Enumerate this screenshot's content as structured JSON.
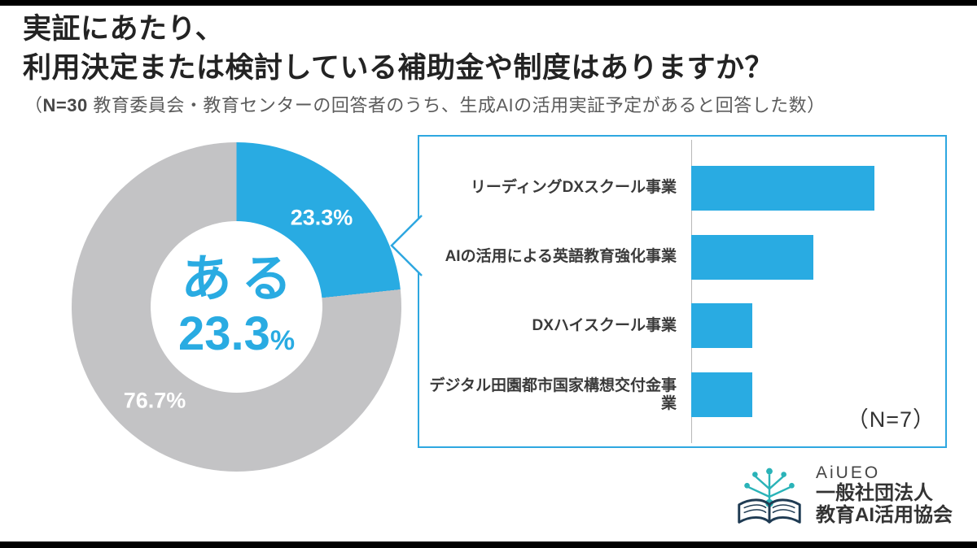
{
  "page": {
    "title_line1": "実証にあたり、",
    "title_line2": "利用決定または検討している補助金や制度はありますか？",
    "subtitle_prefix": "（",
    "subtitle_n": "N=30",
    "subtitle_rest": " 教育委員会・教育センターの回答者のうち、生成AIの活用実証予定があると回答した数）"
  },
  "colors": {
    "blue": "#29ABE2",
    "gray": "#C3C3C5",
    "panel_border": "#2EA7E0"
  },
  "donut": {
    "blue_pct": 23.3,
    "gray_pct": 76.7,
    "center_word": "ある",
    "center_value": "23.3",
    "center_percent_sign": "%",
    "blue_slice_label": "23.3%",
    "gray_slice_label": "76.7%"
  },
  "bar_panel": {
    "n_label": "（N=7）",
    "items": [
      {
        "label": "リーディングDXスクール事業",
        "value": 3
      },
      {
        "label": "AIの活用による英語教育強化事業",
        "value": 2
      },
      {
        "label": "DXハイスクール事業",
        "value": 1
      },
      {
        "label": "デジタル田園都市国家構想交付金事業",
        "value": 1
      }
    ]
  },
  "logo": {
    "line1": "AiUEO",
    "line2": "一般社団法人",
    "line3": "教育AI活用協会"
  },
  "chart_data": [
    {
      "type": "pie",
      "donut": true,
      "title": "実証にあたり、利用決定または検討している補助金や制度はありますか？",
      "subtitle": "（N=30 教育委員会・教育センターの回答者のうち、生成AIの活用実証予定があると回答した数）",
      "labels": [
        "ある",
        ""
      ],
      "values": [
        23.3,
        76.7
      ],
      "colors": [
        "#29ABE2",
        "#C3C3C5"
      ],
      "center_text": "ある 23.3%",
      "start_angle": "top",
      "direction": "clockwise"
    },
    {
      "type": "bar",
      "orientation": "horizontal",
      "categories": [
        "リーディングDXスクール事業",
        "AIの活用による英語教育強化事業",
        "DXハイスクール事業",
        "デジタル田園都市国家構想交付金事業"
      ],
      "values": [
        3,
        2,
        1,
        1
      ],
      "annotation": "（N=7）",
      "xlim": [
        0,
        3.5
      ],
      "legend": "none",
      "grid": "off",
      "bar_color": "#29ABE2"
    }
  ]
}
